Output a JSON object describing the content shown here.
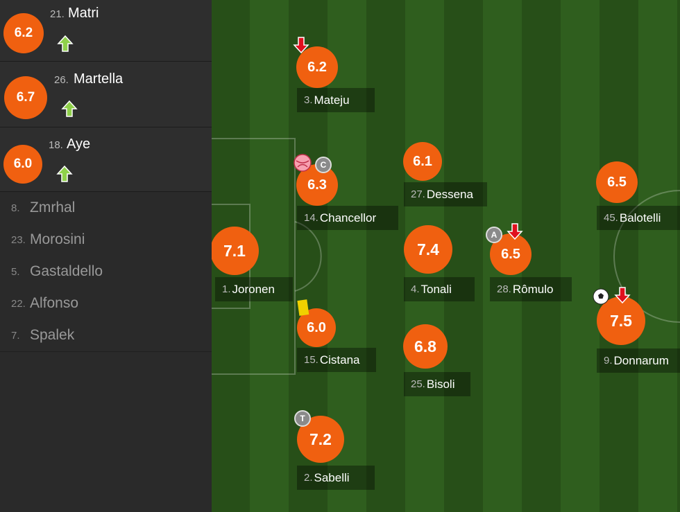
{
  "substitutes_in": [
    {
      "rating": "6.2",
      "number": "21.",
      "name": "Matri"
    },
    {
      "rating": "6.7",
      "number": "26.",
      "name": "Martella"
    },
    {
      "rating": "6.0",
      "number": "18.",
      "name": "Aye"
    }
  ],
  "bench": [
    {
      "number": "8.",
      "name": "Zmrhal"
    },
    {
      "number": "23.",
      "name": "Morosini"
    },
    {
      "number": "5.",
      "name": "Gastaldello"
    },
    {
      "number": "22.",
      "name": "Alfonso"
    },
    {
      "number": "7.",
      "name": "Spalek"
    }
  ],
  "pitch_players": [
    {
      "rating": "6.2",
      "number": "3.",
      "name": "Mateju"
    },
    {
      "rating": "6.3",
      "number": "14.",
      "name": "Chancellor",
      "badge": "C"
    },
    {
      "rating": "7.1",
      "number": "1.",
      "name": "Joronen"
    },
    {
      "rating": "6.0",
      "number": "15.",
      "name": "Cistana"
    },
    {
      "rating": "7.2",
      "number": "2.",
      "name": "Sabelli",
      "badge": "T"
    },
    {
      "rating": "6.1",
      "number": "27.",
      "name": "Dessena"
    },
    {
      "rating": "7.4",
      "number": "4.",
      "name": "Tonali"
    },
    {
      "rating": "6.8",
      "number": "25.",
      "name": "Bisoli"
    },
    {
      "rating": "6.5",
      "number": "28.",
      "name": "Rômulo",
      "badge": "A"
    },
    {
      "rating": "6.5",
      "number": "45.",
      "name": "Balotelli"
    },
    {
      "rating": "7.5",
      "number": "9.",
      "name": "Donnarum"
    }
  ]
}
